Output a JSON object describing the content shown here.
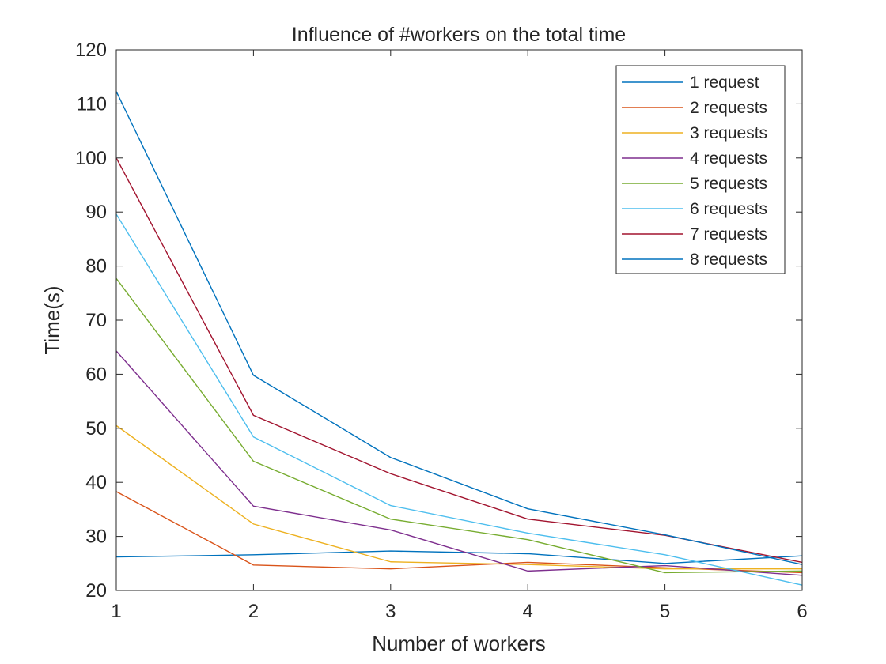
{
  "chart_data": {
    "type": "line",
    "title": "Influence of #workers on the total time",
    "xlabel": "Number of workers",
    "ylabel": "Time(s)",
    "xlim": [
      1,
      6
    ],
    "ylim": [
      20,
      120
    ],
    "xticks": [
      "1",
      "2",
      "3",
      "4",
      "5",
      "6"
    ],
    "yticks": [
      "20",
      "30",
      "40",
      "50",
      "60",
      "70",
      "80",
      "90",
      "100",
      "110",
      "120"
    ],
    "grid": false,
    "legend_position": "top-right",
    "x": [
      1,
      2,
      3,
      4,
      5,
      6
    ],
    "series": [
      {
        "name": "1 request",
        "color": "#0072BD",
        "values": [
          26.2,
          26.6,
          27.3,
          26.8,
          25.0,
          26.4
        ]
      },
      {
        "name": "2 requests",
        "color": "#D95319",
        "values": [
          38.3,
          24.7,
          24.0,
          25.2,
          24.2,
          23.3
        ]
      },
      {
        "name": "3 requests",
        "color": "#EDB120",
        "values": [
          50.5,
          32.3,
          25.3,
          24.8,
          24.0,
          24.0
        ]
      },
      {
        "name": "4 requests",
        "color": "#7E2F8E",
        "values": [
          64.3,
          35.6,
          31.2,
          23.6,
          24.6,
          22.8
        ]
      },
      {
        "name": "5 requests",
        "color": "#77AC30",
        "values": [
          77.7,
          43.9,
          33.2,
          29.4,
          23.3,
          23.6
        ]
      },
      {
        "name": "6 requests",
        "color": "#4DBEEE",
        "values": [
          89.6,
          48.4,
          35.7,
          30.6,
          26.6,
          21.0
        ]
      },
      {
        "name": "7 requests",
        "color": "#A2142F",
        "values": [
          100.0,
          52.4,
          41.6,
          33.2,
          30.2,
          25.2
        ]
      },
      {
        "name": "8 requests",
        "color": "#0072BD",
        "values": [
          112.3,
          59.8,
          44.6,
          35.1,
          30.3,
          24.8
        ]
      }
    ]
  }
}
